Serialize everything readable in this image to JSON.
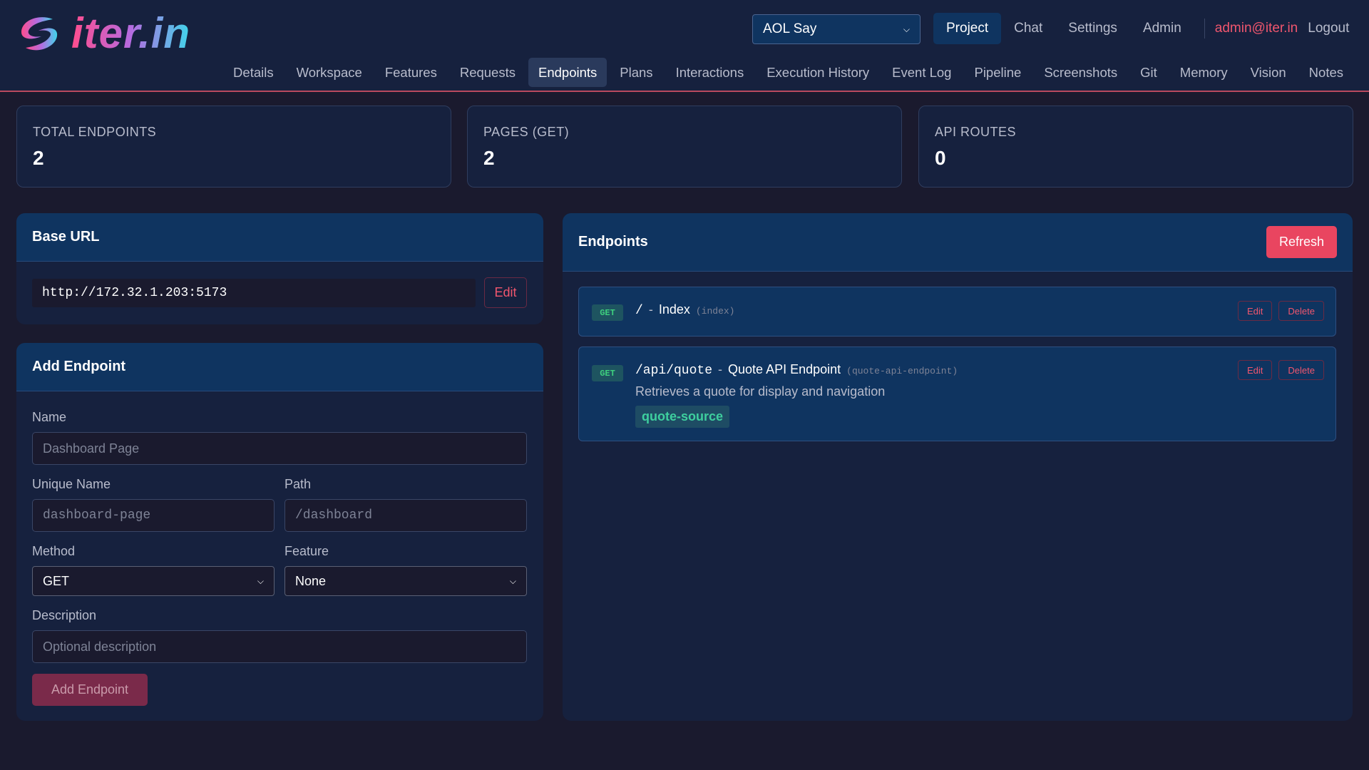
{
  "header": {
    "logo_text": "iter.in",
    "project_select": "AOL Say",
    "nav": [
      "Project",
      "Chat",
      "Settings",
      "Admin"
    ],
    "active_nav": "Project",
    "user_email": "admin@iter.in",
    "logout": "Logout"
  },
  "tabs": [
    "Details",
    "Workspace",
    "Features",
    "Requests",
    "Endpoints",
    "Plans",
    "Interactions",
    "Execution History",
    "Event Log",
    "Pipeline",
    "Screenshots",
    "Git",
    "Memory",
    "Vision",
    "Notes"
  ],
  "active_tab": "Endpoints",
  "stats": [
    {
      "label": "TOTAL ENDPOINTS",
      "value": "2"
    },
    {
      "label": "PAGES (GET)",
      "value": "2"
    },
    {
      "label": "API ROUTES",
      "value": "0"
    }
  ],
  "base_url": {
    "title": "Base URL",
    "value": "http://172.32.1.203:5173",
    "edit": "Edit"
  },
  "add_endpoint": {
    "title": "Add Endpoint",
    "name_label": "Name",
    "name_placeholder": "Dashboard Page",
    "unique_label": "Unique Name",
    "unique_placeholder": "dashboard-page",
    "path_label": "Path",
    "path_placeholder": "/dashboard",
    "method_label": "Method",
    "method_value": "GET",
    "feature_label": "Feature",
    "feature_value": "None",
    "desc_label": "Description",
    "desc_placeholder": "Optional description",
    "submit": "Add Endpoint"
  },
  "endpoints": {
    "title": "Endpoints",
    "refresh": "Refresh",
    "sep": "-",
    "edit": "Edit",
    "delete": "Delete",
    "items": [
      {
        "method": "GET",
        "path": "/",
        "name": "Index",
        "unique": "(index)"
      },
      {
        "method": "GET",
        "path": "/api/quote",
        "name": "Quote API Endpoint",
        "unique": "(quote-api-endpoint)",
        "description": "Retrieves a quote for display and navigation",
        "feature": "quote-source"
      }
    ]
  },
  "colors": {
    "accent": "#e94560",
    "bg": "#1a1a2e",
    "panel": "#16213e",
    "panel_header": "#0f3460",
    "get_badge": "#3ecf7e"
  }
}
